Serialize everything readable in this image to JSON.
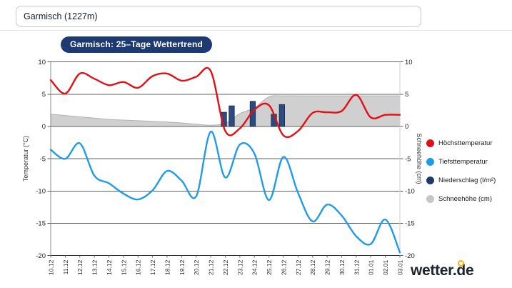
{
  "search": {
    "value": "Garmisch (1227m)"
  },
  "title_badge": "Garmisch: 25–Tage Wettertrend",
  "branding": {
    "logo": "wetter.de",
    "accent_color": "#ffb405"
  },
  "legend": {
    "items": [
      {
        "label": "Höchsttemperatur",
        "color": "#e50c13"
      },
      {
        "label": "Tiefsttemperatur",
        "color": "#1e9be9"
      },
      {
        "label": "Niederschlag (l/m²)",
        "color": "#1d3a6d"
      },
      {
        "label": "Schneehöhe (cm)",
        "color": "#c6c6c6"
      }
    ]
  },
  "chart_data": {
    "type": "line",
    "title": "Garmisch: 25–Tage Wettertrend",
    "categories": [
      "10.12",
      "11.12",
      "12.12",
      "13.12",
      "14.12",
      "15.12",
      "16.12",
      "17.12",
      "18.12",
      "19.12",
      "20.12",
      "21.12",
      "22.12",
      "23.12",
      "24.12",
      "25.12",
      "26.12",
      "27.12",
      "28.12",
      "29.12",
      "30.12",
      "31.12",
      "01.01",
      "02.01",
      "03.01"
    ],
    "series": [
      {
        "name": "Höchsttemperatur",
        "type": "line",
        "color": "#e30f14",
        "values": [
          7.2,
          5.1,
          8.2,
          7.4,
          6.4,
          6.9,
          6.0,
          7.8,
          8.2,
          7.1,
          7.7,
          8.6,
          -0.7,
          -0.3,
          2.6,
          3.3,
          -1.4,
          -0.7,
          2.1,
          2.2,
          2.4,
          4.9,
          1.4,
          1.8,
          1.8
        ]
      },
      {
        "name": "Tiefsttemperatur",
        "type": "line",
        "color": "#1e9be9",
        "values": [
          -3.6,
          -5.0,
          -2.6,
          -7.6,
          -8.8,
          -10.4,
          -11.3,
          -9.9,
          -6.9,
          -8.4,
          -10.8,
          -0.8,
          -7.9,
          -2.8,
          -4.2,
          -11.4,
          -4.7,
          -10.3,
          -14.7,
          -12.1,
          -13.8,
          -17.0,
          -18.2,
          -14.4,
          -19.5
        ]
      },
      {
        "name": "Niederschlag (l/m²)",
        "type": "bar",
        "color": "#2b4c7e",
        "values": [
          null,
          null,
          null,
          null,
          null,
          null,
          null,
          null,
          null,
          null,
          null,
          null,
          2.2,
          3.2,
          3.9,
          1.9,
          3.4,
          null,
          null,
          null,
          null,
          null,
          null,
          null,
          null
        ]
      },
      {
        "name": "Schneehöhe (cm)",
        "type": "area",
        "color": "#cdcdcd",
        "values": [
          1.9,
          1.7,
          1.5,
          1.3,
          1.1,
          1.0,
          0.9,
          0.8,
          0.7,
          0.55,
          0.35,
          0.2,
          0.5,
          2.0,
          2.9,
          4.6,
          4.75,
          4.75,
          4.75,
          4.75,
          4.75,
          4.75,
          4.75,
          4.75,
          4.75
        ]
      }
    ],
    "y_axis_left": {
      "label": "Temperatur (°C)",
      "ticks": [
        10,
        5,
        0,
        -5,
        -10,
        -15,
        -20
      ],
      "range": [
        -20,
        10
      ]
    },
    "y_axis_right": {
      "label": "Schneehöhe (cm)",
      "ticks": [
        10,
        5,
        0,
        -5,
        -10,
        -15,
        -20
      ],
      "range": [
        -20,
        10
      ]
    },
    "grid": true,
    "legend_position": "right"
  }
}
